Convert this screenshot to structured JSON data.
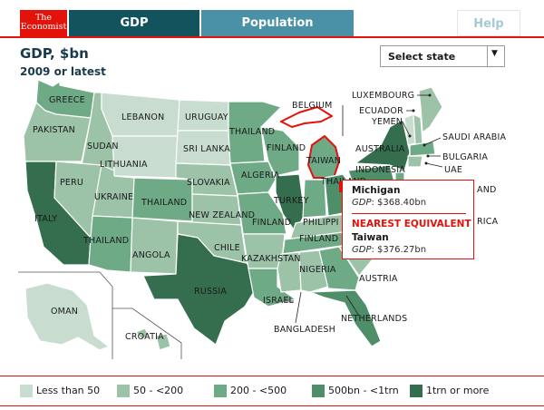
{
  "header": {
    "logo_line1": "The",
    "logo_line2": "Economist",
    "tabs": [
      {
        "label": "GDP",
        "active": true
      },
      {
        "label": "Population",
        "active": false
      }
    ],
    "help_label": "Help"
  },
  "title": "GDP, $bn",
  "subtitle": "2009 or latest",
  "state_select": {
    "selected": "Select state"
  },
  "colors": {
    "accent": "#e3120b",
    "tab_active": "#13535d",
    "tab_inactive": "#4a91a7",
    "bin_lt50": "#c8ddd0",
    "bin_50_200": "#9cc3a8",
    "bin_200_500": "#6faa86",
    "bin_500_1trn": "#4e8f6a",
    "bin_1trn_plus": "#356d4f"
  },
  "legend": [
    {
      "label": "Less than 50",
      "color": "#c8ddd0"
    },
    {
      "label": "50 - <200",
      "color": "#9cc3a8"
    },
    {
      "label": "200 - <500",
      "color": "#6faa86"
    },
    {
      "label": "500bn - <1trn",
      "color": "#4e8f6a"
    },
    {
      "label": "1trn or more",
      "color": "#356d4f"
    }
  ],
  "map_labels": {
    "greece": "GREECE",
    "pakistan": "PAKISTAN",
    "sudan": "SUDAN",
    "lebanon": "LEBANON",
    "uruguay": "URUGUAY",
    "sri_lanka": "SRI LANKA",
    "lithuania": "LITHUANIA",
    "thailand_mn": "THAILAND",
    "finland_wi": "FINLAND",
    "belgium": "BELGIUM",
    "taiwan_mi": "TAIWAN",
    "luxembourg": "LUXEMBOURG",
    "ecuador": "ECUADOR",
    "yemen": "YEMEN",
    "saudi_arabia": "SAUDI ARABIA",
    "australia": "AUSTRALIA",
    "bulgaria": "BULGARIA",
    "indonesia": "INDONESIA",
    "uae": "UAE",
    "peru": "PERU",
    "ukraine": "UKRAINE",
    "italy": "ITALY",
    "thailand_az": "THAILAND",
    "thailand_co": "THAILAND",
    "slovakia": "SLOVAKIA",
    "algeria": "ALGERIA",
    "turkey": "TURKEY",
    "thailand_oh": "THAILAND",
    "new_zealand": "NEW ZEALAND",
    "finland_mo": "FINLAND",
    "philippines": "PHILIPPI",
    "angola": "ANGOLA",
    "chile": "CHILE",
    "kazakhstan": "KAZAKHSTAN",
    "finland_tn": "FINLAND",
    "nigeria": "NIGERIA",
    "russia": "RUSSIA",
    "israel": "ISRAEL",
    "bangladesh": "BANGLADESH",
    "austria": "AUSTRIA",
    "netherlands": "NETHERLANDS",
    "oman": "OMAN",
    "croatia": "CROATIA",
    "and_fragment": "AND",
    "rica_fragment": "RICA"
  },
  "tooltip": {
    "state": "Michigan",
    "gdp_prefix": "GDP",
    "state_gdp": ": $368.40bn",
    "heading": "NEAREST EQUIVALENT",
    "country": "Taiwan",
    "country_gdp": ": $376.27bn"
  }
}
